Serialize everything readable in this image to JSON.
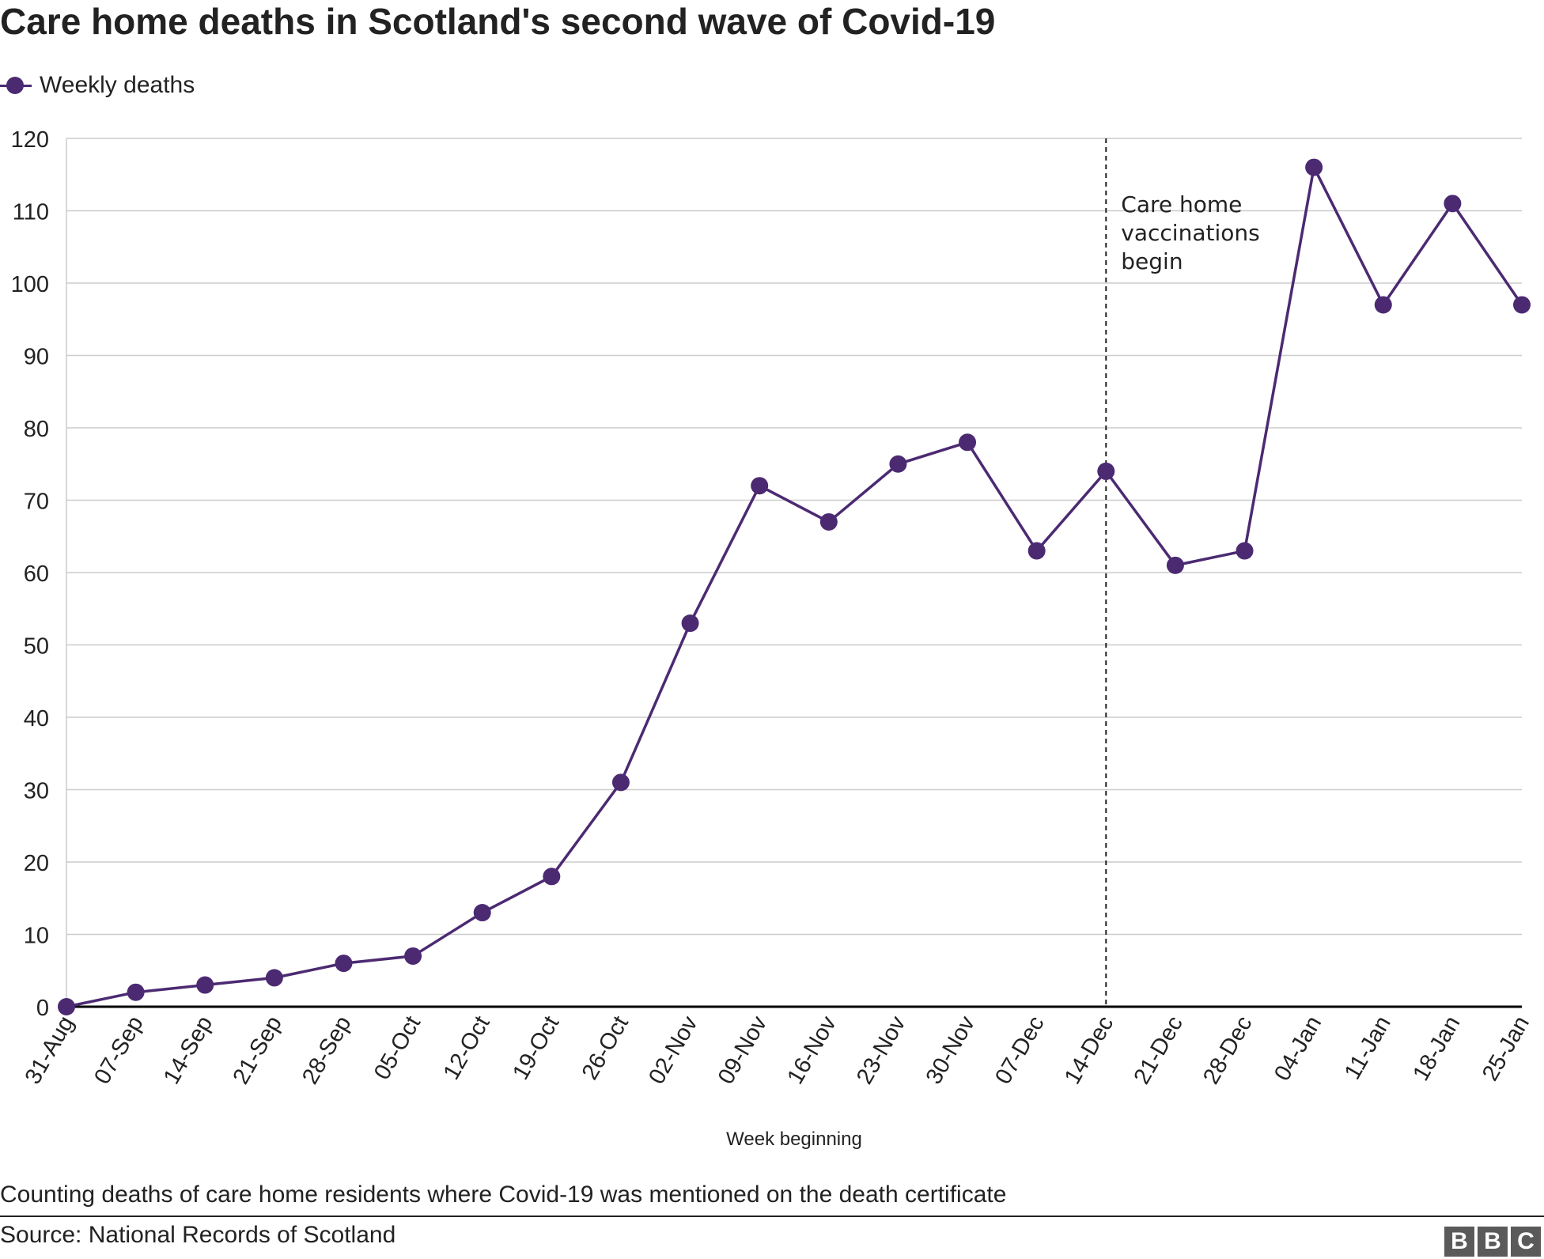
{
  "title": "Care home deaths in Scotland's second wave of Covid-19",
  "legend_label": "Weekly deaths",
  "footnote": "Counting deaths of care home residents where Covid-19 was mentioned on the death certificate",
  "source": "Source: National Records of Scotland",
  "logo": [
    "B",
    "B",
    "C"
  ],
  "colors": {
    "series": "#4c2a72",
    "grid": "#cccccc",
    "axis": "#000000",
    "text": "#222222",
    "marker_line": "#222222"
  },
  "chart_data": {
    "type": "line",
    "xlabel": "Week beginning",
    "ylabel": "",
    "ylim": [
      0,
      120
    ],
    "yticks": [
      0,
      10,
      20,
      30,
      40,
      50,
      60,
      70,
      80,
      90,
      100,
      110,
      120
    ],
    "grid": true,
    "legend_position": "top-left",
    "categories": [
      "31-Aug",
      "07-Sep",
      "14-Sep",
      "21-Sep",
      "28-Sep",
      "05-Oct",
      "12-Oct",
      "19-Oct",
      "26-Oct",
      "02-Nov",
      "09-Nov",
      "16-Nov",
      "23-Nov",
      "30-Nov",
      "07-Dec",
      "14-Dec",
      "21-Dec",
      "28-Dec",
      "04-Jan",
      "11-Jan",
      "18-Jan",
      "25-Jan"
    ],
    "series": [
      {
        "name": "Weekly deaths",
        "values": [
          0,
          2,
          3,
          4,
          6,
          7,
          13,
          18,
          31,
          53,
          72,
          67,
          75,
          78,
          63,
          74,
          61,
          63,
          116,
          97,
          111,
          97
        ]
      }
    ],
    "annotations": [
      {
        "category": "14-Dec",
        "text": [
          "Care home",
          "vaccinations",
          "begin"
        ],
        "style": "dashed-vertical-line"
      }
    ]
  }
}
